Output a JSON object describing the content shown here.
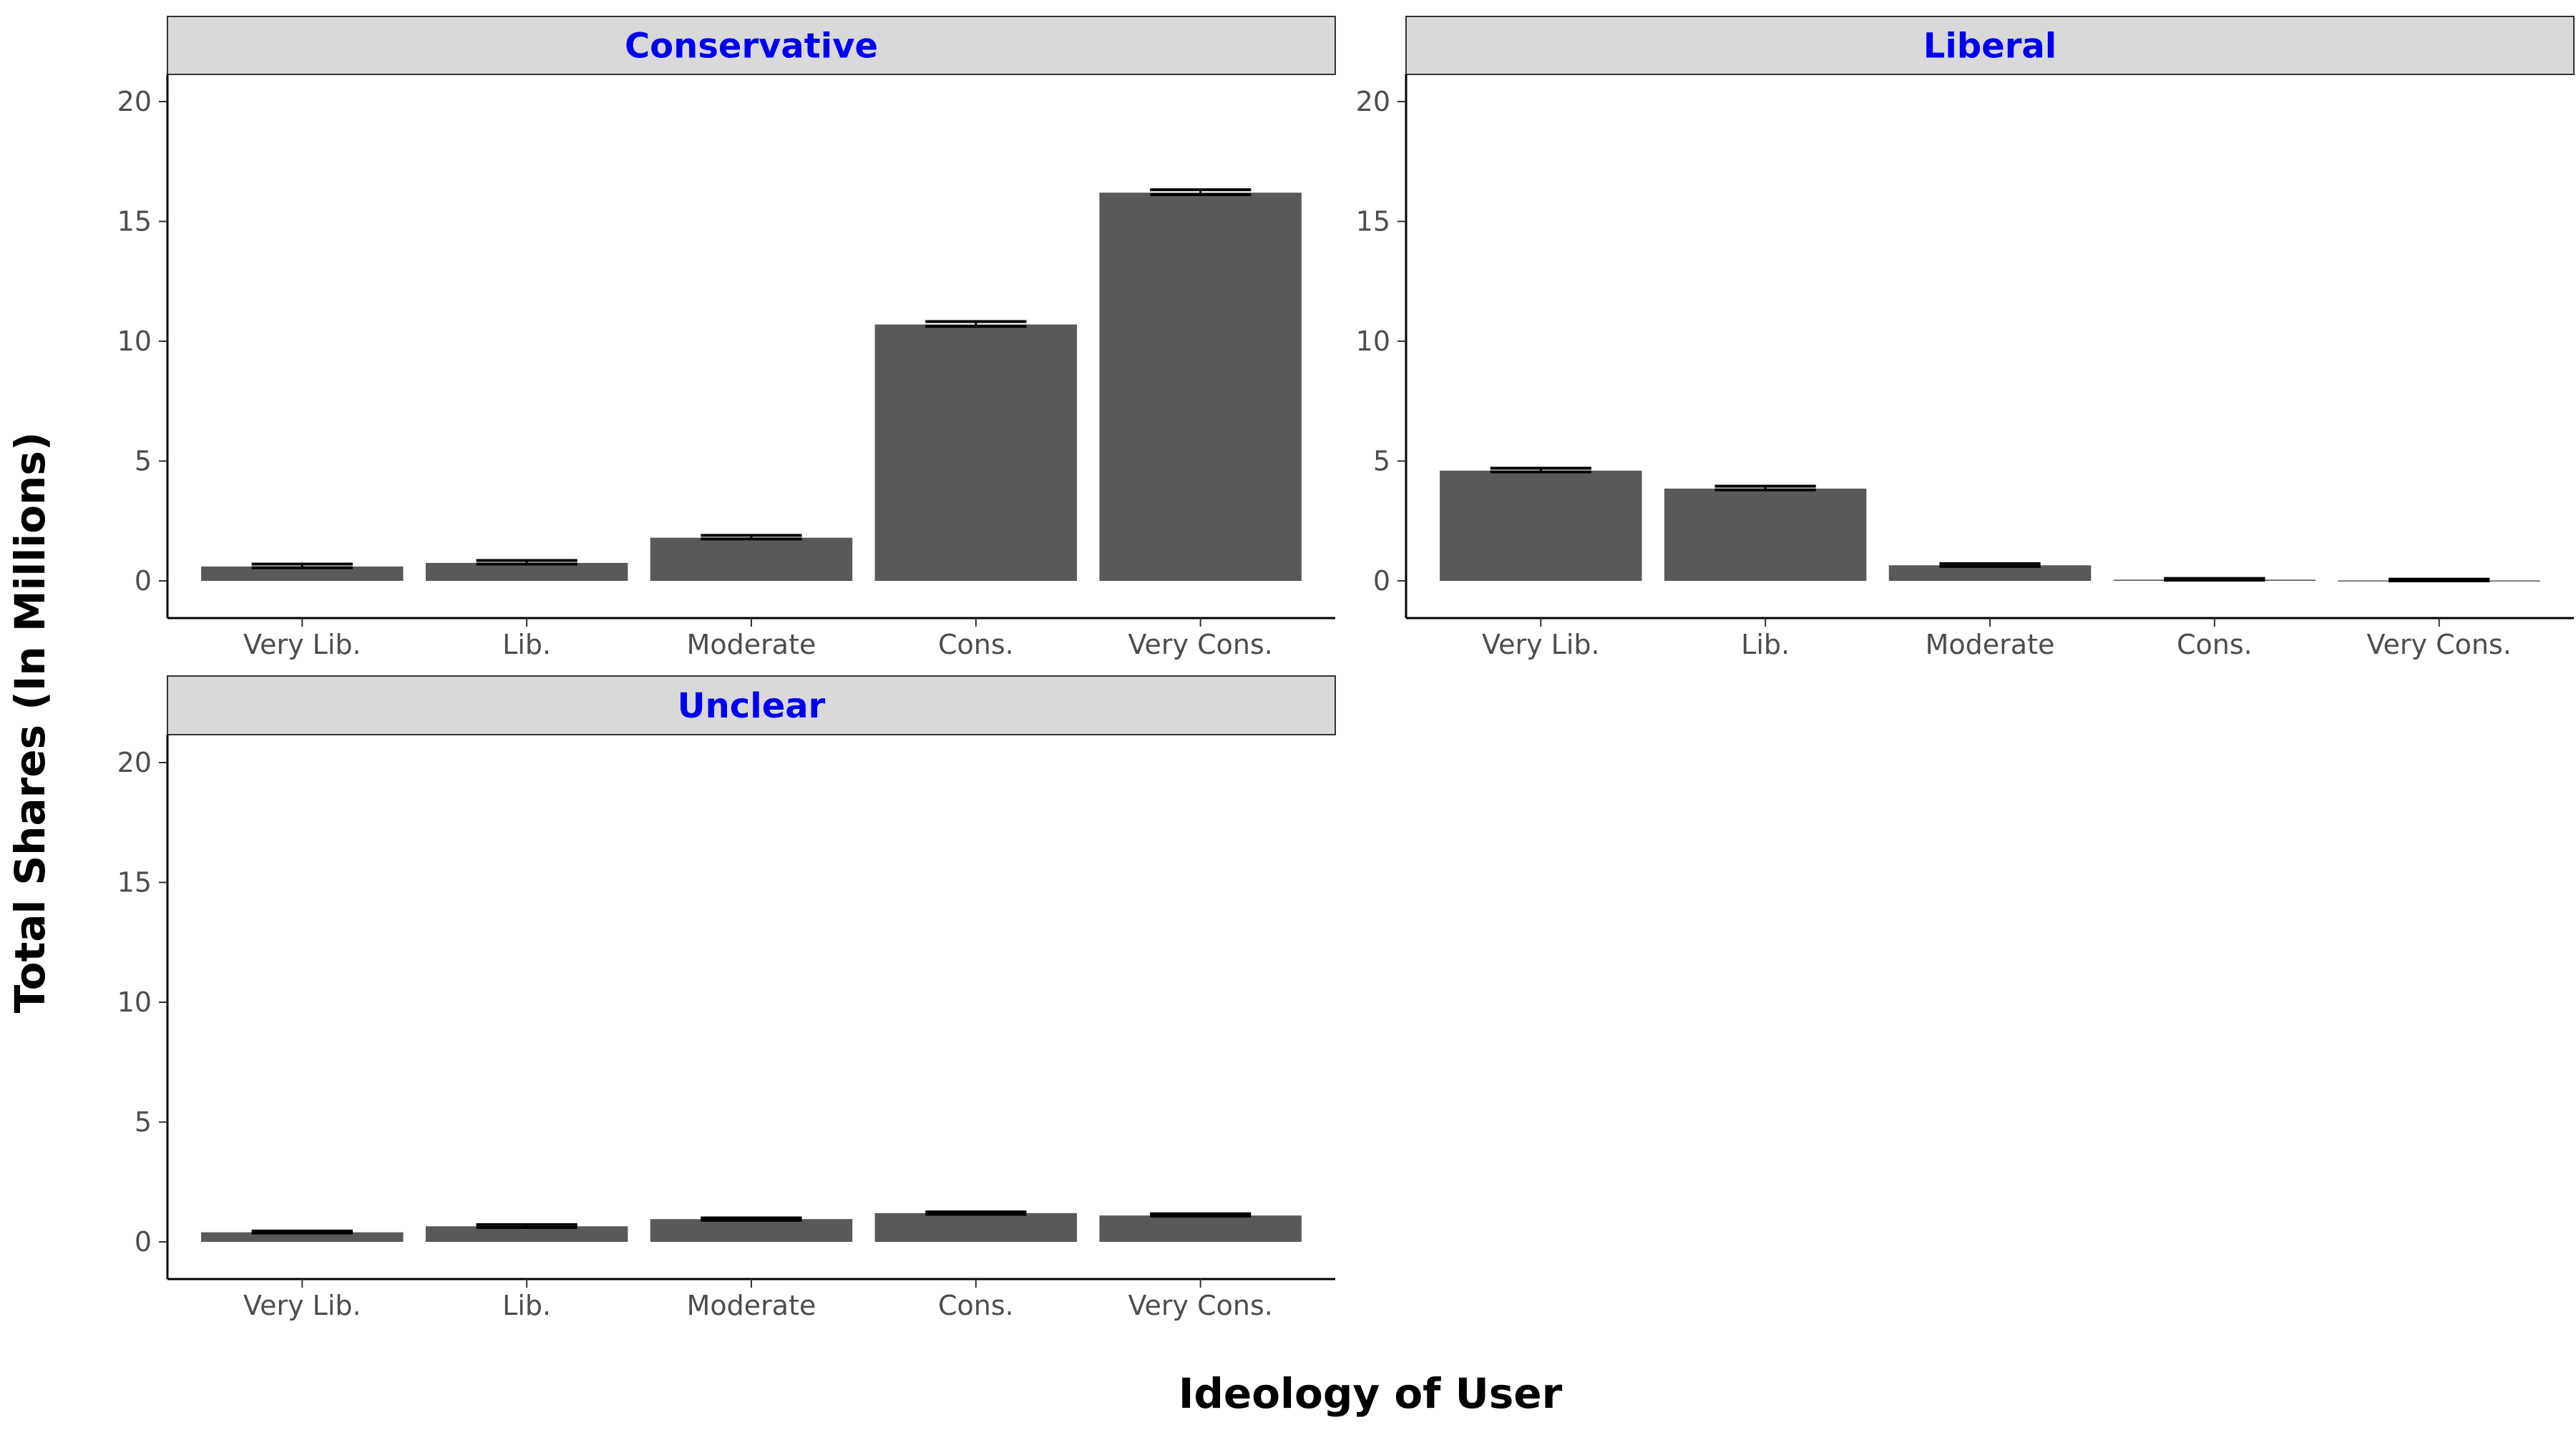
{
  "chart_data": {
    "type": "bar",
    "facet_layout": "wrap, 2 columns",
    "xlabel": "Ideology of User",
    "ylabel": "Total Shares (In Millions)",
    "ylim": [
      0,
      20
    ],
    "y_ticks": [
      "0",
      "5",
      "10",
      "15",
      "20"
    ],
    "categories": [
      "Very Lib.",
      "Lib.",
      "Moderate",
      "Cons.",
      "Very Cons."
    ],
    "grid": false,
    "facets": [
      {
        "title": "Conservative",
        "values": [
          0.6,
          0.75,
          1.8,
          10.7,
          16.2
        ],
        "error_lower": [
          0.55,
          0.7,
          1.75,
          10.62,
          16.12
        ],
        "error_upper": [
          0.7,
          0.85,
          1.9,
          10.82,
          16.32
        ]
      },
      {
        "title": "Liberal",
        "values": [
          4.6,
          3.85,
          0.65,
          0.05,
          0.02
        ],
        "error_lower": [
          4.55,
          3.8,
          0.6,
          0.03,
          0.0
        ],
        "error_upper": [
          4.7,
          3.95,
          0.72,
          0.1,
          0.07
        ]
      },
      {
        "title": "Unclear",
        "values": [
          0.4,
          0.65,
          0.95,
          1.2,
          1.1
        ],
        "error_lower": [
          0.37,
          0.6,
          0.9,
          1.15,
          1.07
        ],
        "error_upper": [
          0.45,
          0.72,
          1.0,
          1.25,
          1.17
        ]
      }
    ],
    "colors": {
      "bar": "#595959",
      "error_bar": "#000000",
      "strip_background": "#d9d9d9",
      "strip_text": "#0000ee",
      "axis_line": "#000000"
    }
  }
}
